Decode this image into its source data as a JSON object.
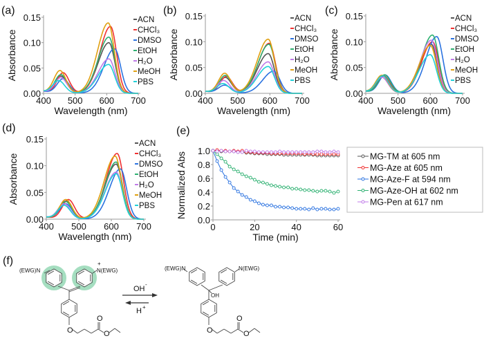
{
  "chart_data": [
    {
      "panel": "(a)",
      "type": "line",
      "xlabel": "Wavelength (nm)",
      "ylabel": "Absorbance",
      "xlim": [
        400,
        700
      ],
      "ylim": [
        0,
        0.15
      ],
      "xticks": [
        "400",
        "500",
        "600",
        "700"
      ],
      "yticks": [
        "0.00",
        "0.05",
        "0.10",
        "0.15"
      ],
      "legend_position": "top-right",
      "series": [
        {
          "name": "ACN",
          "color": "#555555",
          "peaks": [
            [
              455,
              0.033
            ],
            [
              607,
              0.1
            ]
          ]
        },
        {
          "name": "CHCl₃",
          "color": "#f03030",
          "peaks": [
            [
              462,
              0.04
            ],
            [
              612,
              0.132
            ]
          ]
        },
        {
          "name": "DMSO",
          "color": "#2a72e0",
          "peaks": [
            [
              462,
              0.028
            ],
            [
              625,
              0.088
            ]
          ]
        },
        {
          "name": "EtOH",
          "color": "#2cb070",
          "peaks": [
            [
              455,
              0.036
            ],
            [
              607,
              0.111
            ]
          ]
        },
        {
          "name": "H₂O",
          "color": "#c07ae8",
          "peaks": [
            [
              455,
              0.03
            ],
            [
              607,
              0.068
            ]
          ]
        },
        {
          "name": "MeOH",
          "color": "#e0a010",
          "peaks": [
            [
              452,
              0.044
            ],
            [
              605,
              0.139
            ]
          ]
        },
        {
          "name": "PBS",
          "color": "#20d0d8",
          "peaks": [
            [
              448,
              0.024
            ],
            [
              606,
              0.057
            ]
          ]
        }
      ]
    },
    {
      "panel": "(b)",
      "type": "line",
      "xlabel": "Wavelength (nm)",
      "ylabel": "Absorbance",
      "xlim": [
        400,
        700
      ],
      "ylim": [
        0,
        0.15
      ],
      "xticks": [
        "400",
        "500",
        "600",
        "700"
      ],
      "yticks": [
        "0.00",
        "0.05",
        "0.10",
        "0.15"
      ],
      "legend_position": "top-right",
      "series": [
        {
          "name": "ACN",
          "color": "#555555",
          "peaks": [
            [
              462,
              0.03
            ],
            [
              595,
              0.077
            ]
          ]
        },
        {
          "name": "CHCl₃",
          "color": "#f03030",
          "peaks": [
            [
              465,
              0.032
            ],
            [
              598,
              0.097
            ]
          ]
        },
        {
          "name": "DMSO",
          "color": "#2a72e0",
          "peaks": [
            [
              460,
              0.015
            ],
            [
              612,
              0.043
            ]
          ]
        },
        {
          "name": "EtOH",
          "color": "#2cb070",
          "peaks": [
            [
              462,
              0.034
            ],
            [
              597,
              0.095
            ]
          ]
        },
        {
          "name": "H₂O",
          "color": "#c07ae8",
          "peaks": [
            [
              457,
              0.024
            ],
            [
              595,
              0.061
            ]
          ]
        },
        {
          "name": "MeOH",
          "color": "#e0a010",
          "peaks": [
            [
              460,
              0.038
            ],
            [
              595,
              0.105
            ]
          ]
        },
        {
          "name": "PBS",
          "color": "#20d0d8",
          "peaks": [
            [
              455,
              0.018
            ],
            [
              595,
              0.052
            ]
          ]
        }
      ]
    },
    {
      "panel": "(c)",
      "type": "line",
      "xlabel": "Wavelength (nm)",
      "ylabel": "Absorbance",
      "xlim": [
        400,
        700
      ],
      "ylim": [
        0,
        0.15
      ],
      "xticks": [
        "400",
        "500",
        "600",
        "700"
      ],
      "yticks": [
        "0.00",
        "0.05",
        "0.10",
        "0.15"
      ],
      "legend_position": "top-right",
      "series": [
        {
          "name": "ACN",
          "color": "#555555",
          "peaks": [
            [
              455,
              0.033
            ],
            [
              603,
              0.095
            ]
          ]
        },
        {
          "name": "CHCl₃",
          "color": "#f03030",
          "peaks": [
            [
              455,
              0.032
            ],
            [
              607,
              0.1
            ]
          ]
        },
        {
          "name": "DMSO",
          "color": "#2a72e0",
          "peaks": [
            [
              460,
              0.035
            ],
            [
              620,
              0.11
            ]
          ]
        },
        {
          "name": "EtOH",
          "color": "#2cb070",
          "peaks": [
            [
              458,
              0.035
            ],
            [
              607,
              0.113
            ]
          ]
        },
        {
          "name": "H₂O",
          "color": "#c07ae8",
          "peaks": [
            [
              450,
              0.03
            ],
            [
              603,
              0.103
            ]
          ]
        },
        {
          "name": "MeOH",
          "color": "#e0a010",
          "peaks": [
            [
              450,
              0.034
            ],
            [
              600,
              0.093
            ]
          ]
        },
        {
          "name": "PBS",
          "color": "#20d0d8",
          "peaks": [
            [
              452,
              0.033
            ],
            [
              600,
              0.075
            ]
          ]
        }
      ]
    },
    {
      "panel": "(d)",
      "type": "line",
      "xlabel": "Wavelength (nm)",
      "ylabel": "Absorbance",
      "xlim": [
        400,
        700
      ],
      "ylim": [
        0,
        0.15
      ],
      "xticks": [
        "400",
        "500",
        "600",
        "700"
      ],
      "yticks": [
        "0.00",
        "0.05",
        "0.10",
        "0.15"
      ],
      "legend_position": "top-right",
      "series": [
        {
          "name": "ACN",
          "color": "#555555",
          "peaks": [
            [
              460,
              0.033
            ],
            [
              615,
              0.103
            ]
          ]
        },
        {
          "name": "CHCl₃",
          "color": "#f03030",
          "peaks": [
            [
              468,
              0.036
            ],
            [
              618,
              0.123
            ]
          ]
        },
        {
          "name": "DMSO",
          "color": "#2a72e0",
          "peaks": [
            [
              460,
              0.028
            ],
            [
              628,
              0.094
            ]
          ]
        },
        {
          "name": "EtOH",
          "color": "#2cb070",
          "peaks": [
            [
              460,
              0.032
            ],
            [
              615,
              0.107
            ]
          ]
        },
        {
          "name": "H₂O",
          "color": "#c07ae8",
          "peaks": [
            [
              455,
              0.028
            ],
            [
              615,
              0.088
            ]
          ]
        },
        {
          "name": "MeOH",
          "color": "#e0a010",
          "peaks": [
            [
              460,
              0.036
            ],
            [
              612,
              0.118
            ]
          ]
        },
        {
          "name": "PBS",
          "color": "#20d0d8",
          "peaks": [
            [
              455,
              0.025
            ],
            [
              615,
              0.085
            ]
          ]
        }
      ]
    },
    {
      "panel": "(e)",
      "type": "line",
      "xlabel": "Time (min)",
      "ylabel": "Normalized  Abs",
      "xlim": [
        0,
        60
      ],
      "ylim": [
        0,
        1.0
      ],
      "xticks": [
        "0",
        "20",
        "40",
        "60"
      ],
      "yticks": [
        "0.0",
        "0.2",
        "0.4",
        "0.6",
        "0.8",
        "1.0"
      ],
      "legend_position": "right (outside)",
      "x": [
        0,
        2,
        4,
        6,
        8,
        10,
        12,
        14,
        16,
        18,
        20,
        22,
        24,
        26,
        28,
        30,
        32,
        34,
        36,
        38,
        40,
        42,
        44,
        46,
        48,
        50,
        52,
        54,
        56,
        58,
        60
      ],
      "series": [
        {
          "name": "MG-TM at 605 nm",
          "color": "#555555",
          "values": [
            1.0,
            1.0,
            0.99,
            0.99,
            0.99,
            0.99,
            0.98,
            0.98,
            0.97,
            0.97,
            0.96,
            0.96,
            0.96,
            0.95,
            0.95,
            0.95,
            0.95,
            0.94,
            0.94,
            0.94,
            0.94,
            0.94,
            0.94,
            0.94,
            0.94,
            0.93,
            0.93,
            0.93,
            0.93,
            0.93,
            0.93
          ]
        },
        {
          "name": "MG-Aze at 605 nm",
          "color": "#f03030",
          "values": [
            1.0,
            1.01,
            1.0,
            1.0,
            0.99,
            1.0,
            0.99,
            1.0,
            0.98,
            0.98,
            0.97,
            0.97,
            0.97,
            0.97,
            0.96,
            0.96,
            0.96,
            0.96,
            0.96,
            0.96,
            0.96,
            0.96,
            0.95,
            0.96,
            0.95,
            0.95,
            0.95,
            0.95,
            0.95,
            0.95,
            0.95
          ]
        },
        {
          "name": "MG-Aze-F at 594 nm",
          "color": "#2a72e0",
          "values": [
            1.0,
            0.85,
            0.72,
            0.62,
            0.54,
            0.46,
            0.41,
            0.36,
            0.33,
            0.29,
            0.27,
            0.24,
            0.22,
            0.21,
            0.21,
            0.19,
            0.19,
            0.18,
            0.18,
            0.17,
            0.16,
            0.16,
            0.16,
            0.15,
            0.17,
            0.15,
            0.16,
            0.16,
            0.15,
            0.15,
            0.16
          ]
        },
        {
          "name": "MG-Aze-OH at 602 nm",
          "color": "#2cb070",
          "values": [
            1.0,
            0.95,
            0.89,
            0.84,
            0.77,
            0.73,
            0.7,
            0.66,
            0.63,
            0.61,
            0.58,
            0.55,
            0.54,
            0.52,
            0.5,
            0.49,
            0.48,
            0.47,
            0.47,
            0.45,
            0.45,
            0.44,
            0.43,
            0.43,
            0.42,
            0.41,
            0.42,
            0.42,
            0.41,
            0.39,
            0.41
          ]
        },
        {
          "name": "MG-Pen at 617 nm",
          "color": "#c07ae8",
          "values": [
            1.0,
            0.99,
            1.0,
            0.99,
            0.99,
            0.99,
            0.98,
            0.98,
            1.0,
            0.99,
            0.99,
            0.98,
            0.98,
            0.98,
            0.98,
            0.98,
            0.99,
            0.98,
            0.98,
            0.98,
            0.98,
            0.98,
            0.98,
            0.98,
            0.98,
            0.99,
            0.99,
            0.98,
            0.98,
            0.99,
            0.98
          ]
        }
      ]
    }
  ],
  "scheme": {
    "label": "(f)",
    "left": {
      "n_left": "(EWG)N",
      "n_right": "N(EWG)",
      "charge": "+",
      "o_ether": "O",
      "o_carbonyl": "O",
      "o_ester": "O"
    },
    "right": {
      "n_left": "(EWG)N",
      "n_right": "N(EWG)",
      "oh": "OH",
      "o_ether": "O",
      "o_carbonyl": "O",
      "o_ester": "O"
    },
    "forward": {
      "reagent": "OH",
      "sup": "-"
    },
    "backward": {
      "reagent": "H",
      "sup": "+"
    },
    "highlight_color": "#8fd6b0"
  }
}
